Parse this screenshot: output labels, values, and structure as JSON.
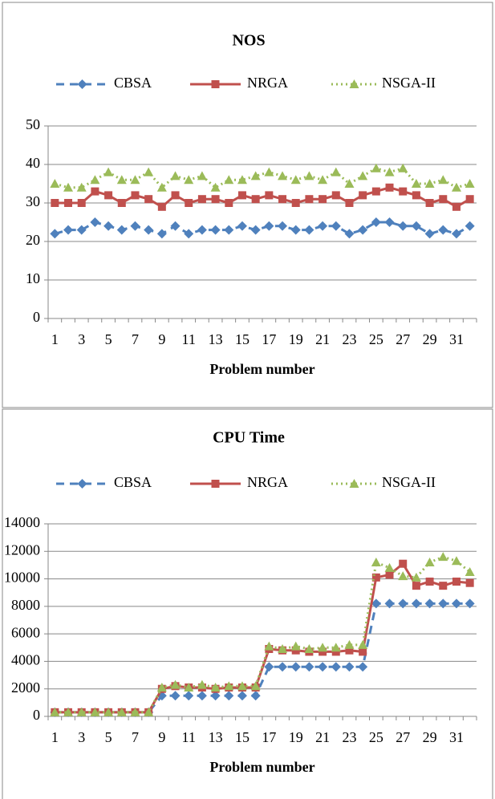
{
  "chart_data": [
    {
      "type": "line",
      "title": "NOS",
      "xlabel": "Problem number",
      "categories": [
        "1",
        null,
        "3",
        null,
        "5",
        null,
        "7",
        null,
        "9",
        null,
        "11",
        null,
        "13",
        null,
        "15",
        null,
        "17",
        null,
        "19",
        null,
        "21",
        null,
        "23",
        null,
        "25",
        null,
        "27",
        null,
        "29",
        null,
        "31",
        null
      ],
      "ylim": [
        0,
        50
      ],
      "yticks": [
        0,
        10,
        20,
        30,
        40,
        50
      ],
      "grid": true,
      "series": [
        {
          "name": "CBSA",
          "color": "#4f81bd",
          "values": [
            22,
            23,
            23,
            25,
            24,
            23,
            24,
            23,
            22,
            24,
            22,
            23,
            23,
            23,
            24,
            23,
            24,
            24,
            23,
            23,
            24,
            24,
            22,
            23,
            25,
            25,
            24,
            24,
            22,
            23,
            22,
            24
          ]
        },
        {
          "name": "NRGA",
          "color": "#c0504d",
          "values": [
            30,
            30,
            30,
            33,
            32,
            30,
            32,
            31,
            29,
            32,
            30,
            31,
            31,
            30,
            32,
            31,
            32,
            31,
            30,
            31,
            31,
            32,
            30,
            32,
            33,
            34,
            33,
            32,
            30,
            31,
            29,
            31
          ]
        },
        {
          "name": "NSGA-II",
          "color": "#9bbb59",
          "values": [
            35,
            34,
            34,
            36,
            38,
            36,
            36,
            38,
            34,
            37,
            36,
            37,
            34,
            36,
            36,
            37,
            38,
            37,
            36,
            37,
            36,
            38,
            35,
            37,
            39,
            38,
            39,
            35,
            35,
            36,
            34,
            35
          ]
        }
      ]
    },
    {
      "type": "line",
      "title": "CPU Time",
      "xlabel": "Problem number",
      "categories": [
        "1",
        null,
        "3",
        null,
        "5",
        null,
        "7",
        null,
        "9",
        null,
        "11",
        null,
        "13",
        null,
        "15",
        null,
        "17",
        null,
        "19",
        null,
        "21",
        null,
        "23",
        null,
        "25",
        null,
        "27",
        null,
        "29",
        null,
        "31",
        null
      ],
      "ylim": [
        0,
        14000
      ],
      "yticks": [
        0,
        2000,
        4000,
        6000,
        8000,
        10000,
        12000,
        14000
      ],
      "grid": true,
      "series": [
        {
          "name": "CBSA",
          "color": "#4f81bd",
          "values": [
            300,
            300,
            300,
            300,
            300,
            300,
            300,
            300,
            1500,
            1500,
            1500,
            1500,
            1500,
            1500,
            1500,
            1500,
            3600,
            3600,
            3600,
            3600,
            3600,
            3600,
            3600,
            3600,
            8200,
            8200,
            8200,
            8200,
            8200,
            8200,
            8200,
            8200
          ]
        },
        {
          "name": "NRGA",
          "color": "#c0504d",
          "values": [
            300,
            300,
            300,
            300,
            300,
            300,
            300,
            300,
            2000,
            2200,
            2100,
            2100,
            2000,
            2100,
            2100,
            2100,
            4900,
            4800,
            4800,
            4700,
            4700,
            4700,
            4800,
            4700,
            10100,
            10300,
            11100,
            9500,
            9800,
            9500,
            9800,
            9700
          ]
        },
        {
          "name": "NSGA-II",
          "color": "#9bbb59",
          "values": [
            300,
            300,
            300,
            300,
            300,
            300,
            300,
            300,
            2100,
            2300,
            2100,
            2300,
            2100,
            2200,
            2200,
            2200,
            5100,
            4900,
            5100,
            4900,
            5000,
            5000,
            5200,
            5200,
            11200,
            10800,
            10200,
            10100,
            11200,
            11600,
            11300,
            10500
          ]
        }
      ]
    }
  ]
}
